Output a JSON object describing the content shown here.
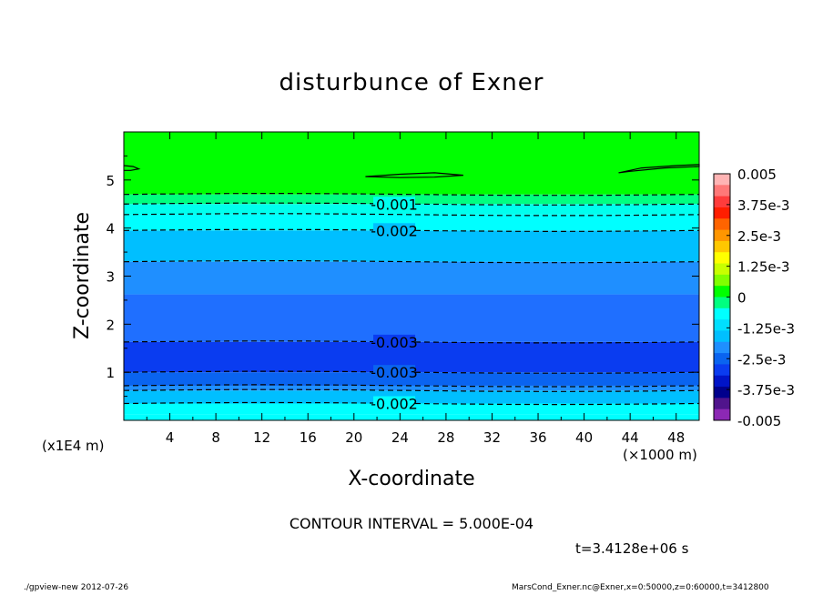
{
  "chart_data": {
    "type": "heatmap",
    "title": "disturbunce of Exner",
    "xlabel": "X-coordinate",
    "ylabel": "Z-coordinate",
    "x_units": "(×1000 m)",
    "y_units": "(x1E4 m)",
    "xlim": [
      0,
      50
    ],
    "ylim": [
      0,
      6
    ],
    "x_ticks": [
      4,
      8,
      12,
      16,
      20,
      24,
      28,
      32,
      36,
      40,
      44,
      48
    ],
    "y_ticks": [
      1,
      2,
      3,
      4,
      5
    ],
    "contour_interval_label": "CONTOUR INTERVAL = 5.000E-04",
    "time_label": "t=3.4128e+06 s",
    "fill_bands": [
      {
        "z_range": [
          0.0,
          0.12
        ],
        "color": "#00ffff"
      },
      {
        "z_range": [
          0.12,
          0.35
        ],
        "color": "#00ffff"
      },
      {
        "z_range": [
          0.35,
          0.62
        ],
        "color": "#00bfff"
      },
      {
        "z_range": [
          0.62,
          0.72
        ],
        "color": "#1f8fff"
      },
      {
        "z_range": [
          0.72,
          1.0
        ],
        "color": "#0a64f0"
      },
      {
        "z_range": [
          1.0,
          1.63
        ],
        "color": "#0a3cf0"
      },
      {
        "z_range": [
          1.63,
          2.62
        ],
        "color": "#1f6fff"
      },
      {
        "z_range": [
          2.62,
          3.3
        ],
        "color": "#1f8fff"
      },
      {
        "z_range": [
          3.3,
          3.95
        ],
        "color": "#00bfff"
      },
      {
        "z_range": [
          3.95,
          4.28
        ],
        "color": "#00ffff"
      },
      {
        "z_range": [
          4.28,
          4.5
        ],
        "color": "#00ffee"
      },
      {
        "z_range": [
          4.5,
          4.7
        ],
        "color": "#00ff80"
      },
      {
        "z_range": [
          4.7,
          6.0
        ],
        "color": "#00ff00"
      }
    ],
    "contours": [
      {
        "z": 4.7,
        "dashed": true
      },
      {
        "z": 4.5,
        "dashed": true
      },
      {
        "z": 4.28,
        "dashed": true
      },
      {
        "z": 3.95,
        "dashed": true
      },
      {
        "z": 3.3,
        "dashed": true
      },
      {
        "z": 1.63,
        "dashed": true
      },
      {
        "z": 1.0,
        "dashed": true
      },
      {
        "z": 0.72,
        "dashed": true
      },
      {
        "z": 0.62,
        "dashed": true
      },
      {
        "z": 0.35,
        "dashed": true
      }
    ],
    "contour_labels": [
      {
        "text": "-0.001",
        "x": 23.5,
        "z": 4.5
      },
      {
        "text": "-0.002",
        "x": 23.5,
        "z": 3.95
      },
      {
        "text": "-0.003",
        "x": 23.5,
        "z": 1.63
      },
      {
        "text": "-0.003",
        "x": 23.5,
        "z": 1.0
      },
      {
        "text": "-0.002",
        "x": 23.5,
        "z": 0.35
      }
    ],
    "zero_contours": [
      {
        "points": [
          [
            0,
            5.3
          ],
          [
            0.8,
            5.28
          ],
          [
            1.3,
            5.23
          ],
          [
            0.6,
            5.2
          ],
          [
            0,
            5.2
          ]
        ]
      },
      {
        "points": [
          [
            21.0,
            5.07
          ],
          [
            24,
            5.12
          ],
          [
            27,
            5.15
          ],
          [
            29.5,
            5.1
          ],
          [
            27,
            5.06
          ],
          [
            24,
            5.05
          ],
          [
            21.0,
            5.07
          ]
        ]
      },
      {
        "points": [
          [
            43.0,
            5.15
          ],
          [
            45,
            5.25
          ],
          [
            48,
            5.3
          ],
          [
            50,
            5.32
          ],
          [
            50,
            5.28
          ],
          [
            47,
            5.25
          ],
          [
            44,
            5.18
          ],
          [
            43.0,
            5.15
          ]
        ]
      }
    ],
    "colorbar": {
      "ticks": [
        "0.005",
        "3.75e-3",
        "2.5e-3",
        "1.25e-3",
        "0",
        "-1.25e-3",
        "-2.5e-3",
        "-3.75e-3",
        "-0.005"
      ],
      "colors_top_to_bottom": [
        "#ffb4b4",
        "#ff7878",
        "#ff3c3c",
        "#ff1e00",
        "#ff6400",
        "#ff9600",
        "#ffc800",
        "#ffff00",
        "#c8ff00",
        "#80ff00",
        "#00ff00",
        "#00ff80",
        "#00ffff",
        "#00dfff",
        "#00bfff",
        "#1f8fff",
        "#0a64f0",
        "#0a3cf0",
        "#0014c8",
        "#00008c",
        "#50148c",
        "#8c28b4"
      ]
    }
  },
  "footer": {
    "left": "./gpview-new   2012-07-26",
    "right": "MarsCond_Exner.nc@Exner,x=0:50000,z=0:60000,t=3412800"
  }
}
